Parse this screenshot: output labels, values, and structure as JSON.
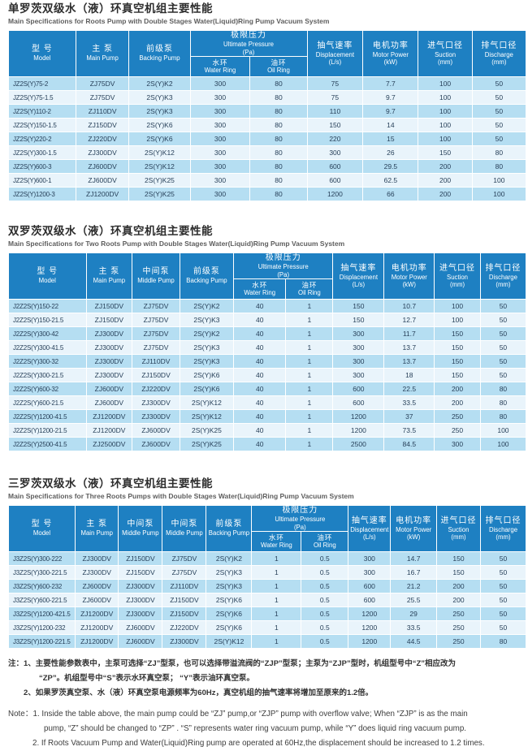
{
  "colors": {
    "header_blue": "#1e80c2",
    "row_blue": "#b5def2",
    "row_pale": "#e9f4fb",
    "header_text": "#ffffff",
    "body_text": "#28415a"
  },
  "sections": [
    {
      "title_zh": "单罗茨双级水（液）环真空机组主要性能",
      "title_en": "Main Specifications for Roots Pump with Double Stages Water(Liquid)Ring Pump Vacuum System",
      "table": {
        "columns": [
          {
            "type": "plain",
            "zh": "型 号",
            "en": "Model",
            "w": 13.0
          },
          {
            "type": "plain",
            "zh": "主 泵",
            "en": "Main Pump",
            "w": 10.3
          },
          {
            "type": "plain",
            "zh": "前级泵",
            "en": "Backing Pump",
            "w": 11.8
          },
          {
            "type": "group",
            "zh": "极限压力",
            "en": "Ultimate Pressure",
            "unit": "(Pa)",
            "subs": [
              {
                "zh": "水环",
                "en": "Water Ring",
                "w": 11.6
              },
              {
                "zh": "油环",
                "en": "Oil Ring",
                "w": 11.0
              }
            ]
          },
          {
            "type": "unit",
            "zh": "抽气速率",
            "en": "Displacement",
            "unit": "(L/s)",
            "w": 10.8
          },
          {
            "type": "unit",
            "zh": "电机功率",
            "en": "Motor Power",
            "unit": "(kW)",
            "w": 10.7
          },
          {
            "type": "unit",
            "zh": "进气口径",
            "en": "Suction",
            "unit": "(mm)",
            "w": 10.4
          },
          {
            "type": "unit",
            "zh": "排气口径",
            "en": "Discharge",
            "unit": "(mm)",
            "w": 10.4
          }
        ],
        "rows": [
          [
            "JZ2S(Y)75-2",
            "ZJ75DV",
            "2S(Y)K2",
            "300",
            "80",
            "75",
            "7.7",
            "100",
            "50"
          ],
          [
            "JZ2S(Y)75-1.5",
            "ZJ75DV",
            "2S(Y)K3",
            "300",
            "80",
            "75",
            "9.7",
            "100",
            "50"
          ],
          [
            "JZ2S(Y)110-2",
            "ZJ110DV",
            "2S(Y)K3",
            "300",
            "80",
            "110",
            "9.7",
            "100",
            "50"
          ],
          [
            "JZ2S(Y)150-1.5",
            "ZJ150DV",
            "2S(Y)K6",
            "300",
            "80",
            "150",
            "14",
            "100",
            "50"
          ],
          [
            "JZ2S(Y)220-2",
            "ZJ220DV",
            "2S(Y)K6",
            "300",
            "80",
            "220",
            "15",
            "100",
            "50"
          ],
          [
            "JZ2S(Y)300-1.5",
            "ZJ300DV",
            "2S(Y)K12",
            "300",
            "80",
            "300",
            "26",
            "150",
            "80"
          ],
          [
            "JZ2S(Y)600-3",
            "ZJ600DV",
            "2S(Y)K12",
            "300",
            "80",
            "600",
            "29.5",
            "200",
            "80"
          ],
          [
            "JZ2S(Y)600-1",
            "ZJ600DV",
            "2S(Y)K25",
            "300",
            "80",
            "600",
            "62.5",
            "200",
            "100"
          ],
          [
            "JZ2S(Y)1200-3",
            "ZJ1200DV",
            "2S(Y)K25",
            "300",
            "80",
            "1200",
            "66",
            "200",
            "100"
          ]
        ]
      }
    },
    {
      "title_zh": "双罗茨双级水（液）环真空机组主要性能",
      "title_en": "Main Specifications for Two Roots Pump with Double Stages Water(Liquid)Ring Pump Vacuum System",
      "table": {
        "columns": [
          {
            "type": "plain",
            "zh": "型 号",
            "en": "Model",
            "w": 15.0
          },
          {
            "type": "plain",
            "zh": "主 泵",
            "en": "Main Pump",
            "w": 8.9
          },
          {
            "type": "plain",
            "zh": "中间泵",
            "en": "Middle Pump",
            "w": 9.2
          },
          {
            "type": "plain",
            "zh": "前级泵",
            "en": "Backing Pump",
            "w": 10.4
          },
          {
            "type": "group",
            "zh": "极限压力",
            "en": "Ultimate Pressure",
            "unit": "(Pa)",
            "subs": [
              {
                "zh": "水环",
                "en": "Water Ring",
                "w": 10.1
              },
              {
                "zh": "油环",
                "en": "Oil Ring",
                "w": 9.1
              }
            ]
          },
          {
            "type": "unit",
            "zh": "抽气速率",
            "en": "Displacement",
            "unit": "(L/s)",
            "w": 9.9
          },
          {
            "type": "unit",
            "zh": "电机功率",
            "en": "Motor Power",
            "unit": "(kW)",
            "w": 9.7
          },
          {
            "type": "unit",
            "zh": "进气口径",
            "en": "Suction",
            "unit": "(mm)",
            "w": 8.9
          },
          {
            "type": "unit",
            "zh": "排气口径",
            "en": "Discharge",
            "unit": "(mm)",
            "w": 8.8
          }
        ],
        "rows": [
          [
            "J2Z2S(Y)150-22",
            "ZJ150DV",
            "ZJ75DV",
            "2S(Y)K2",
            "40",
            "1",
            "150",
            "10.7",
            "100",
            "50"
          ],
          [
            "J2Z2S(Y)150-21.5",
            "ZJ150DV",
            "ZJ75DV",
            "2S(Y)K3",
            "40",
            "1",
            "150",
            "12.7",
            "100",
            "50"
          ],
          [
            "J2Z2S(Y)300-42",
            "ZJ300DV",
            "ZJ75DV",
            "2S(Y)K2",
            "40",
            "1",
            "300",
            "11.7",
            "150",
            "50"
          ],
          [
            "J2Z2S(Y)300-41.5",
            "ZJ300DV",
            "ZJ75DV",
            "2S(Y)K3",
            "40",
            "1",
            "300",
            "13.7",
            "150",
            "50"
          ],
          [
            "J2Z2S(Y)300-32",
            "ZJ300DV",
            "ZJ110DV",
            "2S(Y)K3",
            "40",
            "1",
            "300",
            "13.7",
            "150",
            "50"
          ],
          [
            "J2Z2S(Y)300-21.5",
            "ZJ300DV",
            "ZJ150DV",
            "2S(Y)K6",
            "40",
            "1",
            "300",
            "18",
            "150",
            "50"
          ],
          [
            "J2Z2S(Y)600-32",
            "ZJ600DV",
            "ZJ220DV",
            "2S(Y)K6",
            "40",
            "1",
            "600",
            "22.5",
            "200",
            "80"
          ],
          [
            "J2Z2S(Y)600-21.5",
            "ZJ600DV",
            "ZJ300DV",
            "2S(Y)K12",
            "40",
            "1",
            "600",
            "33.5",
            "200",
            "80"
          ],
          [
            "J2Z2S(Y)1200-41.5",
            "ZJ1200DV",
            "ZJ300DV",
            "2S(Y)K12",
            "40",
            "1",
            "1200",
            "37",
            "250",
            "80"
          ],
          [
            "J2Z2S(Y)1200-21.5",
            "ZJ1200DV",
            "ZJ600DV",
            "2S(Y)K25",
            "40",
            "1",
            "1200",
            "73.5",
            "250",
            "100"
          ],
          [
            "J2Z2S(Y)2500-41.5",
            "ZJ2500DV",
            "ZJ600DV",
            "2S(Y)K25",
            "40",
            "1",
            "2500",
            "84.5",
            "300",
            "100"
          ]
        ]
      }
    },
    {
      "title_zh": "三罗茨双级水（液）环真空机组主要性能",
      "title_en": "Main Specifications for Three Roots Pumps with Double Stages Water(Liquid)Ring Pump Vacuum System",
      "table": {
        "columns": [
          {
            "type": "plain",
            "zh": "型 号",
            "en": "Model",
            "w": 12.9
          },
          {
            "type": "plain",
            "zh": "主 泵",
            "en": "Main Pump",
            "w": 8.4
          },
          {
            "type": "plain",
            "zh": "中间泵",
            "en": "Middle Pump",
            "w": 8.5
          },
          {
            "type": "plain",
            "zh": "中间泵",
            "en": "Middle Pump",
            "w": 8.5
          },
          {
            "type": "plain",
            "zh": "前级泵",
            "en": "Backing Pump",
            "w": 8.8
          },
          {
            "type": "group",
            "zh": "极限压力",
            "en": "Ultimate Pressure",
            "unit": "(Pa)",
            "subs": [
              {
                "zh": "水环",
                "en": "Water Ring",
                "w": 9.6
              },
              {
                "zh": "油环",
                "en": "Oil Ring",
                "w": 9.1
              }
            ]
          },
          {
            "type": "unit",
            "zh": "抽气速率",
            "en": "Displacement",
            "unit": "(L/s)",
            "w": 8.2
          },
          {
            "type": "unit",
            "zh": "电机功率",
            "en": "Motor Power",
            "unit": "(kW)",
            "w": 8.9
          },
          {
            "type": "unit",
            "zh": "进气口径",
            "en": "Suction",
            "unit": "(mm)",
            "w": 8.5
          },
          {
            "type": "unit",
            "zh": "排气口径",
            "en": "Discharge",
            "unit": "(mm)",
            "w": 8.8
          }
        ],
        "rows": [
          [
            "J3Z2S(Y)300-222",
            "ZJ300DV",
            "ZJ150DV",
            "ZJ75DV",
            "2S(Y)K2",
            "1",
            "0.5",
            "300",
            "14.7",
            "150",
            "50"
          ],
          [
            "J3Z2S(Y)300-221.5",
            "ZJ300DV",
            "ZJ150DV",
            "ZJ75DV",
            "2S(Y)K3",
            "1",
            "0.5",
            "300",
            "16.7",
            "150",
            "50"
          ],
          [
            "J3Z2S(Y)600-232",
            "ZJ600DV",
            "ZJ300DV",
            "ZJ110DV",
            "2S(Y)K3",
            "1",
            "0.5",
            "600",
            "21.2",
            "200",
            "50"
          ],
          [
            "J3Z2S(Y)600-221.5",
            "ZJ600DV",
            "ZJ300DV",
            "ZJ150DV",
            "2S(Y)K6",
            "1",
            "0.5",
            "600",
            "25.5",
            "200",
            "50"
          ],
          [
            "J3Z2S(Y)1200-421.5",
            "ZJ1200DV",
            "ZJ300DV",
            "ZJ150DV",
            "2S(Y)K6",
            "1",
            "0.5",
            "1200",
            "29",
            "250",
            "50"
          ],
          [
            "J3Z2S(Y)1200-232",
            "ZJ1200DV",
            "ZJ600DV",
            "ZJ220DV",
            "2S(Y)K6",
            "1",
            "0.5",
            "1200",
            "33.5",
            "250",
            "50"
          ],
          [
            "J3Z2S(Y)1200-221.5",
            "ZJ1200DV",
            "ZJ600DV",
            "ZJ300DV",
            "2S(Y)K12",
            "1",
            "0.5",
            "1200",
            "44.5",
            "250",
            "80"
          ]
        ]
      }
    }
  ],
  "notes_zh": {
    "line1": "注：1、主要性能参数表中，主泵可选择“ZJ”型泵，也可以选择带溢流阀的“ZJP”型泵；主泵为“ZJP”型时，机组型号中“Z”相应改为",
    "line2": "“ZP”。机组型号中“S”表示水环真空泵； “Y”表示油环真空泵。",
    "line3": "2、如果罗茨真空泵、水（液）环真空泵电源频率为60Hz，真空机组的抽气速率将增加至原来的1.2倍。"
  },
  "notes_en": {
    "line1": "Note：1.  Inside the table above, the main pump could be “ZJ” pump,or “ZJP” pump with overflow valve; When “ZJP” is as the main",
    "line2": "pump, “Z” should be changed to “ZP” . “S” represents water ring vacuum pump, while “Y” does liquid ring vacuum pump.",
    "line3": "2.  If Roots Vacuum Pump and Water(Liquid)Ring pump are operated at 60Hz,the displacement should be increased to 1.2 times."
  }
}
